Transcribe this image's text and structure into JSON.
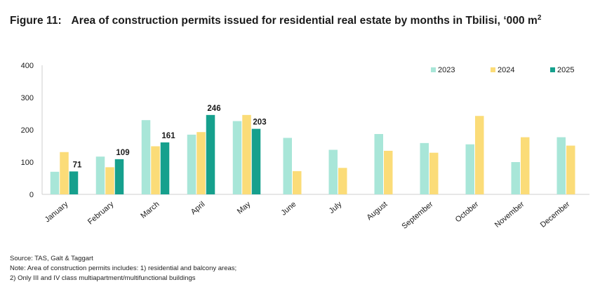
{
  "title": {
    "figure": "Figure 11:",
    "text": "Area of construction permits issued for residential real estate by months in Tbilisi, ‘000 m",
    "superscript": "2"
  },
  "colors": {
    "2023": "#a8e6d8",
    "2024": "#fbdc78",
    "2025": "#16a08d",
    "axis": "#cfcfcf",
    "text": "#1a1a1a"
  },
  "chart_data": {
    "type": "bar",
    "categories": [
      "January",
      "February",
      "March",
      "April",
      "May",
      "June",
      "July",
      "August",
      "September",
      "October",
      "November",
      "December"
    ],
    "series": [
      {
        "name": "2023",
        "values": [
          70,
          117,
          230,
          185,
          227,
          175,
          138,
          187,
          159,
          155,
          100,
          177
        ]
      },
      {
        "name": "2024",
        "values": [
          131,
          84,
          149,
          193,
          246,
          72,
          82,
          135,
          129,
          243,
          177,
          151
        ]
      },
      {
        "name": "2025",
        "values": [
          71,
          109,
          161,
          246,
          203,
          null,
          null,
          null,
          null,
          null,
          null,
          null
        ]
      }
    ],
    "data_labels": {
      "series": "2025",
      "values": [
        "71",
        "109",
        "161",
        "246",
        "203"
      ]
    },
    "yticks": [
      "0",
      "100",
      "200",
      "300",
      "400"
    ],
    "ylim": [
      0,
      400
    ],
    "grid": false,
    "legend_position": "top-right"
  },
  "notes": {
    "source": "Source: TAS, Galt & Taggart",
    "line1": "Note: Area of construction permits includes: 1) residential and balcony areas;",
    "line2": "2) Only III and IV class multiapartment/multifunctional buildings"
  }
}
